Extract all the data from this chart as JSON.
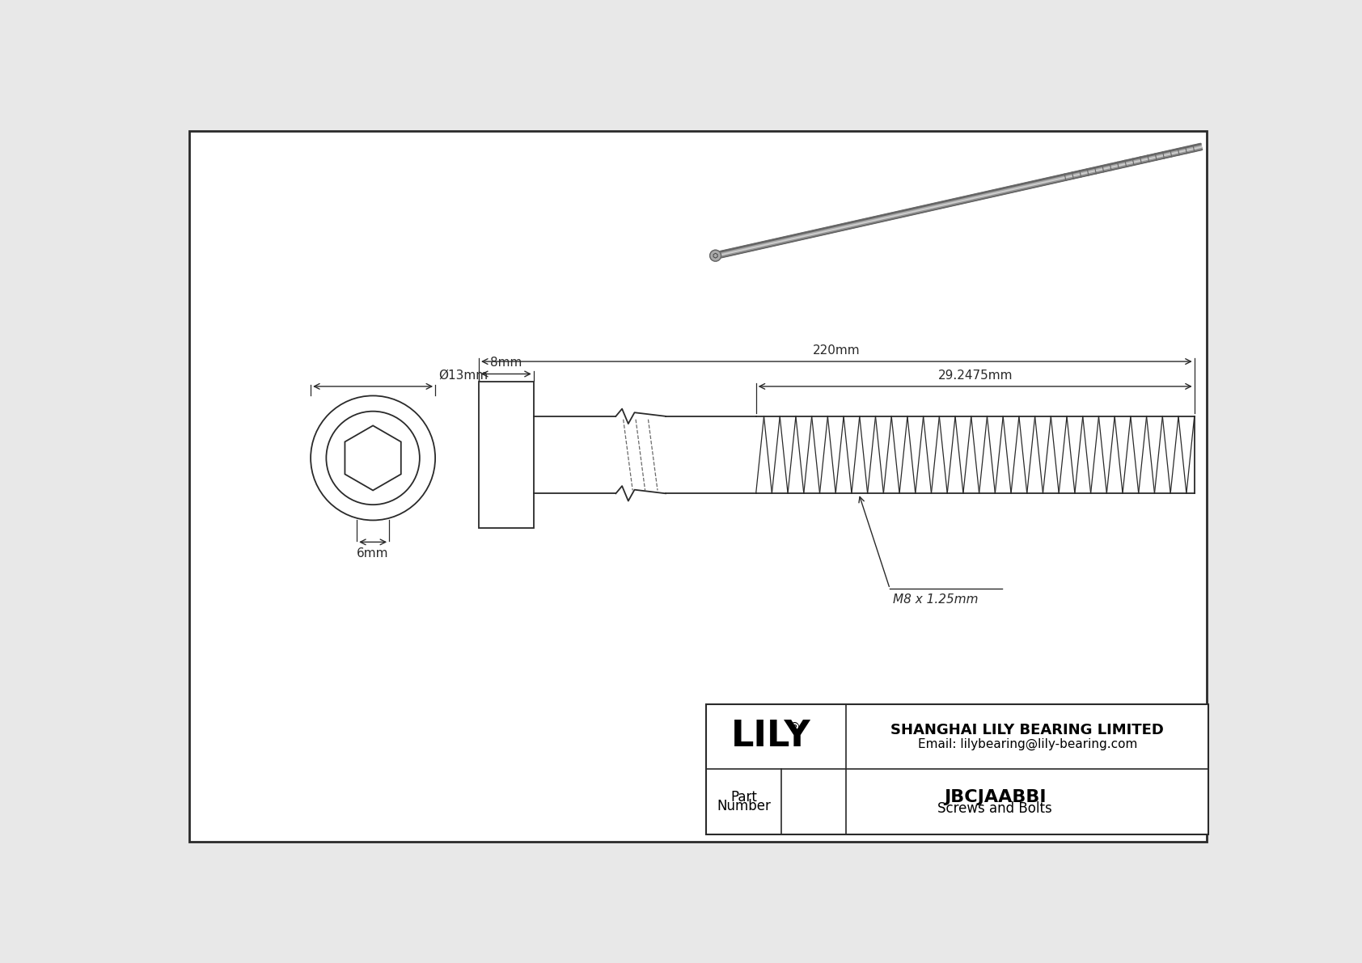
{
  "bg_color": "#e8e8e8",
  "drawing_bg": "#ffffff",
  "line_color": "#2a2a2a",
  "dim_color": "#2a2a2a",
  "title_company": "SHANGHAI LILY BEARING LIMITED",
  "title_email": "Email: lilybearing@lily-bearing.com",
  "part_number": "JBCJAABBI",
  "part_category": "Screws and Bolts",
  "brand": "LILY",
  "dim_head_diameter": "Ø13mm",
  "dim_head_height": "8mm",
  "dim_total_length": "220mm",
  "dim_thread_length": "29.2475mm",
  "dim_hex_socket": "6mm",
  "dim_thread_spec": "M8 x 1.25mm",
  "screw_color_edge": "#666666",
  "screw_color_mid": "#aaaaaa",
  "screw_color_light": "#d0d0d0"
}
